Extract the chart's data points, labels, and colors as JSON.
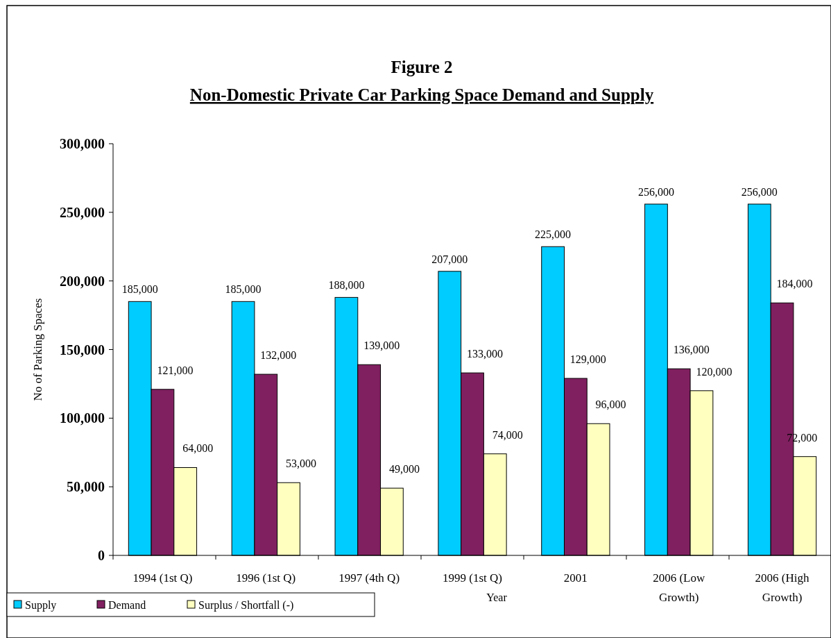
{
  "chart_data": {
    "type": "bar",
    "title": "Figure 2",
    "subtitle": "Non-Domestic Private Car Parking Space Demand and Supply",
    "xlabel": "Year",
    "ylabel": "No of Parking Spaces",
    "categories": [
      "1994 (1st Q)",
      "1996 (1st Q)",
      "1997 (4th Q)",
      "1999 (1st Q)",
      "2001",
      "2006 (Low Growth)",
      "2006 (High Growth)"
    ],
    "series": [
      {
        "name": "Supply",
        "color": "#00ccff",
        "values": [
          185000,
          185000,
          188000,
          207000,
          225000,
          256000,
          256000
        ],
        "value_labels": [
          "185,000",
          "185,000",
          "188,000",
          "207,000",
          "225,000",
          "256,000",
          "256,000"
        ]
      },
      {
        "name": "Demand",
        "color": "#802060",
        "values": [
          121000,
          132000,
          139000,
          133000,
          129000,
          136000,
          184000
        ],
        "value_labels": [
          "121,000",
          "132,000",
          "139,000",
          "133,000",
          "129,000",
          "136,000",
          "184,000"
        ]
      },
      {
        "name": "Surplus / Shortfall (-)",
        "color": "#ffffc0",
        "values": [
          64000,
          53000,
          49000,
          74000,
          96000,
          120000,
          72000
        ],
        "value_labels": [
          "64,000",
          "53,000",
          "49,000",
          "74,000",
          "96,000",
          "120,000",
          "72,000"
        ]
      }
    ],
    "ylim": [
      0,
      300000
    ],
    "yticks": [
      {
        "value": 0,
        "label": "0"
      },
      {
        "value": 50000,
        "label": "50,000"
      },
      {
        "value": 100000,
        "label": "100,000"
      },
      {
        "value": 150000,
        "label": "150,000"
      },
      {
        "value": 200000,
        "label": "200,000"
      },
      {
        "value": 250000,
        "label": "250,000"
      },
      {
        "value": 300000,
        "label": "300,000"
      }
    ],
    "grid": false,
    "legend": "bottom left"
  }
}
